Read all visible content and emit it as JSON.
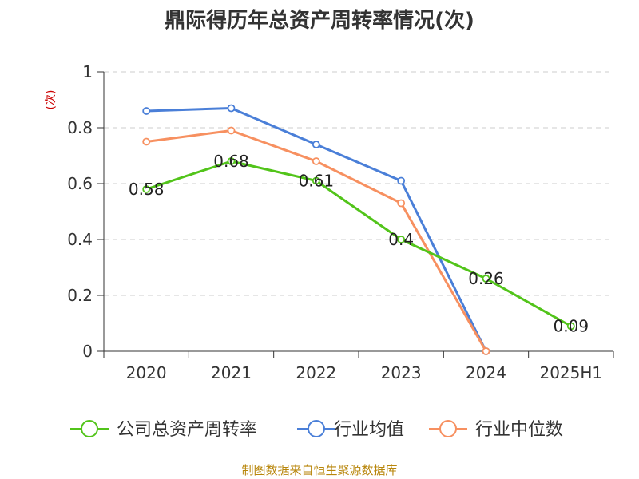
{
  "chart_data": {
    "type": "line",
    "title": "鼎际得历年总资产周转率情况(次)",
    "ylabel": "(次)",
    "xlabel": "",
    "categories": [
      "2020",
      "2021",
      "2022",
      "2023",
      "2024",
      "2025H1"
    ],
    "y_ticks": [
      "0",
      "0.2",
      "0.4",
      "0.6",
      "0.8",
      "1"
    ],
    "ylim": [
      0,
      1
    ],
    "grid": true,
    "legend_position": "bottom",
    "series": [
      {
        "name": "公司总资产周转率",
        "color": "#52c41a",
        "values": [
          0.58,
          0.68,
          0.61,
          0.4,
          0.26,
          0.09
        ],
        "labels": [
          "0.58",
          "0.68",
          "0.61",
          "0.4",
          "0.26",
          "0.09"
        ]
      },
      {
        "name": "行业均值",
        "color": "#4a7fd8",
        "values": [
          0.86,
          0.87,
          0.74,
          0.61,
          0.0,
          null
        ]
      },
      {
        "name": "行业中位数",
        "color": "#f79060",
        "values": [
          0.75,
          0.79,
          0.68,
          0.53,
          0.0,
          null
        ]
      }
    ]
  },
  "source": "制图数据来自恒生聚源数据库"
}
